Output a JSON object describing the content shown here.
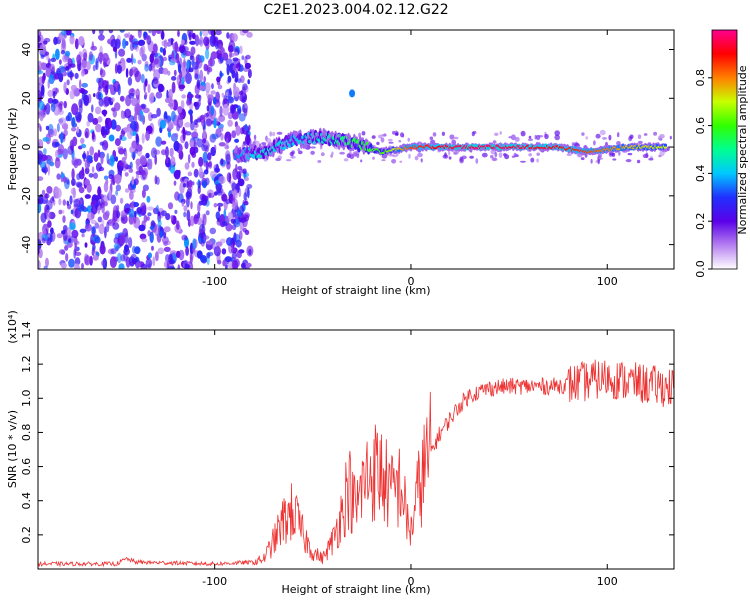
{
  "title": "C2E1.2023.004.02.12.G22",
  "chart_data": [
    {
      "type": "heatmap",
      "xlabel": "Height of straight line (km)",
      "ylabel": "Frequency (Hz)",
      "xlim": [
        -190,
        134
      ],
      "ylim": [
        -50,
        48
      ],
      "x_ticks": [
        -100,
        0,
        100
      ],
      "y_ticks": [
        -40,
        -20,
        0,
        20,
        40
      ],
      "colorbar": {
        "label": "Normalized spectral amplitude",
        "range": [
          0,
          1
        ],
        "ticks": [
          0.0,
          0.2,
          0.4,
          0.6,
          0.8
        ],
        "colors": [
          "#ffffff",
          "#b57ff0",
          "#5a00e8",
          "#2030ff",
          "#00c8ff",
          "#00ff90",
          "#30ff00",
          "#c8ff00",
          "#ff8000",
          "#ff0000",
          "#ff0090"
        ]
      },
      "signal_ridge": [
        {
          "x": -90,
          "freq": -3,
          "amplitude": 0.35
        },
        {
          "x": -75,
          "freq": -2,
          "amplitude": 0.45
        },
        {
          "x": -60,
          "freq": 3,
          "amplitude": 0.4
        },
        {
          "x": -45,
          "freq": 4,
          "amplitude": 0.45
        },
        {
          "x": -30,
          "freq": 2,
          "amplitude": 0.55
        },
        {
          "x": -15,
          "freq": -2,
          "amplitude": 0.6
        },
        {
          "x": 0,
          "freq": 0,
          "amplitude": 0.85
        },
        {
          "x": 25,
          "freq": 0,
          "amplitude": 0.95
        },
        {
          "x": 50,
          "freq": 0,
          "amplitude": 0.95
        },
        {
          "x": 75,
          "freq": 0,
          "amplitude": 0.9
        },
        {
          "x": 90,
          "freq": -2,
          "amplitude": 0.85
        },
        {
          "x": 110,
          "freq": 0,
          "amplitude": 0.75
        },
        {
          "x": 130,
          "freq": 0,
          "amplitude": 0.7
        }
      ],
      "features": [
        {
          "x": -30,
          "freq": 22,
          "amplitude": 0.35
        }
      ]
    },
    {
      "type": "line",
      "xlabel": "Height of straight line (km)",
      "ylabel": "SNR (10 * v/v)",
      "y_multiplier": "(x10⁴)",
      "xlim": [
        -190,
        134
      ],
      "ylim": [
        0,
        1.4
      ],
      "x_ticks": [
        -100,
        0,
        100
      ],
      "y_ticks": [
        0.2,
        0.4,
        0.6,
        0.8,
        1.0,
        1.2,
        1.4
      ],
      "series": [
        {
          "color": "#ee3333",
          "x": [
            -190,
            -150,
            -145,
            -140,
            -100,
            -80,
            -75,
            -70,
            -65,
            -60,
            -55,
            -50,
            -45,
            -40,
            -35,
            -32,
            -28,
            -25,
            -20,
            -15,
            -10,
            -5,
            -2,
            0,
            3,
            6,
            10,
            15,
            20,
            25,
            30,
            40,
            50,
            60,
            70,
            80,
            90,
            100,
            110,
            120,
            134
          ],
          "y": [
            0.03,
            0.03,
            0.06,
            0.04,
            0.03,
            0.04,
            0.06,
            0.16,
            0.28,
            0.34,
            0.2,
            0.1,
            0.06,
            0.16,
            0.34,
            0.5,
            0.34,
            0.48,
            0.58,
            0.56,
            0.44,
            0.5,
            0.28,
            0.22,
            0.42,
            0.56,
            0.68,
            0.8,
            0.88,
            0.96,
            1.02,
            1.06,
            1.07,
            1.07,
            1.07,
            1.08,
            1.1,
            1.12,
            1.1,
            1.08,
            1.06
          ]
        }
      ]
    }
  ]
}
